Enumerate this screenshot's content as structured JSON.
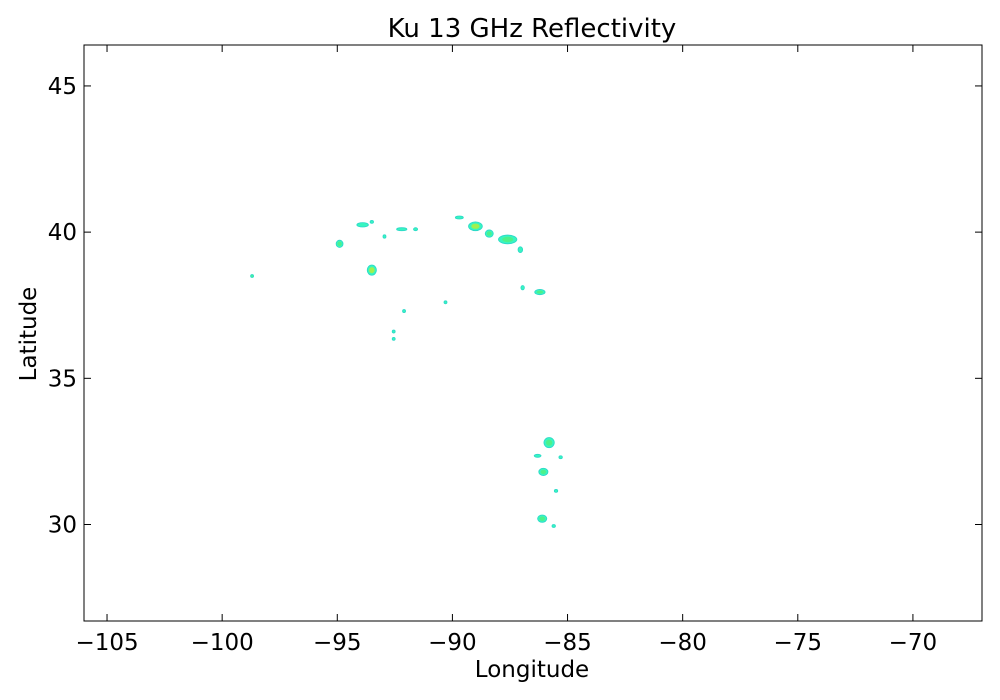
{
  "chart_data": {
    "type": "scatter",
    "title": "Ku 13 GHz Reflectivity",
    "xlabel": "Longitude",
    "ylabel": "Latitude",
    "xlim": [
      -106,
      -67
    ],
    "ylim": [
      26.7,
      46.4
    ],
    "xticks": [
      -105,
      -100,
      -95,
      -90,
      -85,
      -80,
      -75,
      -70
    ],
    "xtick_labels": [
      "−105",
      "−100",
      "−95",
      "−90",
      "−85",
      "−80",
      "−75",
      "−70"
    ],
    "yticks": [
      30,
      35,
      40,
      45
    ],
    "ytick_labels": [
      "30",
      "35",
      "40",
      "45"
    ],
    "grid": false,
    "legend": "none",
    "colors": {
      "low": "#38f5c0",
      "mid": "#4ef08a",
      "high": "#a0f050",
      "edge": "#2ad8c8"
    },
    "points": [
      {
        "lon": -94.9,
        "lat": 39.6,
        "w": 0.3,
        "h": 0.25,
        "level": "mid"
      },
      {
        "lon": -93.9,
        "lat": 40.25,
        "w": 0.5,
        "h": 0.15,
        "level": "low"
      },
      {
        "lon": -93.5,
        "lat": 40.35,
        "w": 0.15,
        "h": 0.1,
        "level": "low"
      },
      {
        "lon": -92.95,
        "lat": 39.85,
        "w": 0.12,
        "h": 0.12,
        "level": "low"
      },
      {
        "lon": -92.2,
        "lat": 40.1,
        "w": 0.45,
        "h": 0.1,
        "level": "low"
      },
      {
        "lon": -91.6,
        "lat": 40.1,
        "w": 0.18,
        "h": 0.08,
        "level": "low"
      },
      {
        "lon": -93.5,
        "lat": 38.7,
        "w": 0.4,
        "h": 0.35,
        "level": "high"
      },
      {
        "lon": -98.7,
        "lat": 38.5,
        "w": 0.06,
        "h": 0.06,
        "level": "mid"
      },
      {
        "lon": -92.1,
        "lat": 37.3,
        "w": 0.08,
        "h": 0.1,
        "level": "low"
      },
      {
        "lon": -92.55,
        "lat": 36.6,
        "w": 0.06,
        "h": 0.06,
        "level": "low"
      },
      {
        "lon": -92.55,
        "lat": 36.35,
        "w": 0.06,
        "h": 0.08,
        "level": "low"
      },
      {
        "lon": -90.3,
        "lat": 37.6,
        "w": 0.06,
        "h": 0.05,
        "level": "low"
      },
      {
        "lon": -89.7,
        "lat": 40.5,
        "w": 0.35,
        "h": 0.1,
        "level": "low"
      },
      {
        "lon": -89.0,
        "lat": 40.2,
        "w": 0.6,
        "h": 0.3,
        "level": "high"
      },
      {
        "lon": -88.4,
        "lat": 39.95,
        "w": 0.35,
        "h": 0.25,
        "level": "mid"
      },
      {
        "lon": -87.6,
        "lat": 39.75,
        "w": 0.8,
        "h": 0.3,
        "level": "mid"
      },
      {
        "lon": -87.05,
        "lat": 39.4,
        "w": 0.2,
        "h": 0.2,
        "level": "low"
      },
      {
        "lon": -86.95,
        "lat": 38.1,
        "w": 0.15,
        "h": 0.15,
        "level": "low"
      },
      {
        "lon": -86.2,
        "lat": 37.95,
        "w": 0.45,
        "h": 0.18,
        "level": "mid"
      },
      {
        "lon": -85.8,
        "lat": 32.8,
        "w": 0.45,
        "h": 0.35,
        "level": "mid"
      },
      {
        "lon": -86.3,
        "lat": 32.35,
        "w": 0.3,
        "h": 0.08,
        "level": "low"
      },
      {
        "lon": -85.3,
        "lat": 32.3,
        "w": 0.15,
        "h": 0.1,
        "level": "low"
      },
      {
        "lon": -86.05,
        "lat": 31.8,
        "w": 0.4,
        "h": 0.25,
        "level": "mid"
      },
      {
        "lon": -85.5,
        "lat": 31.15,
        "w": 0.15,
        "h": 0.08,
        "level": "low"
      },
      {
        "lon": -86.1,
        "lat": 30.2,
        "w": 0.4,
        "h": 0.25,
        "level": "mid"
      },
      {
        "lon": -85.6,
        "lat": 29.95,
        "w": 0.15,
        "h": 0.1,
        "level": "low"
      }
    ]
  }
}
